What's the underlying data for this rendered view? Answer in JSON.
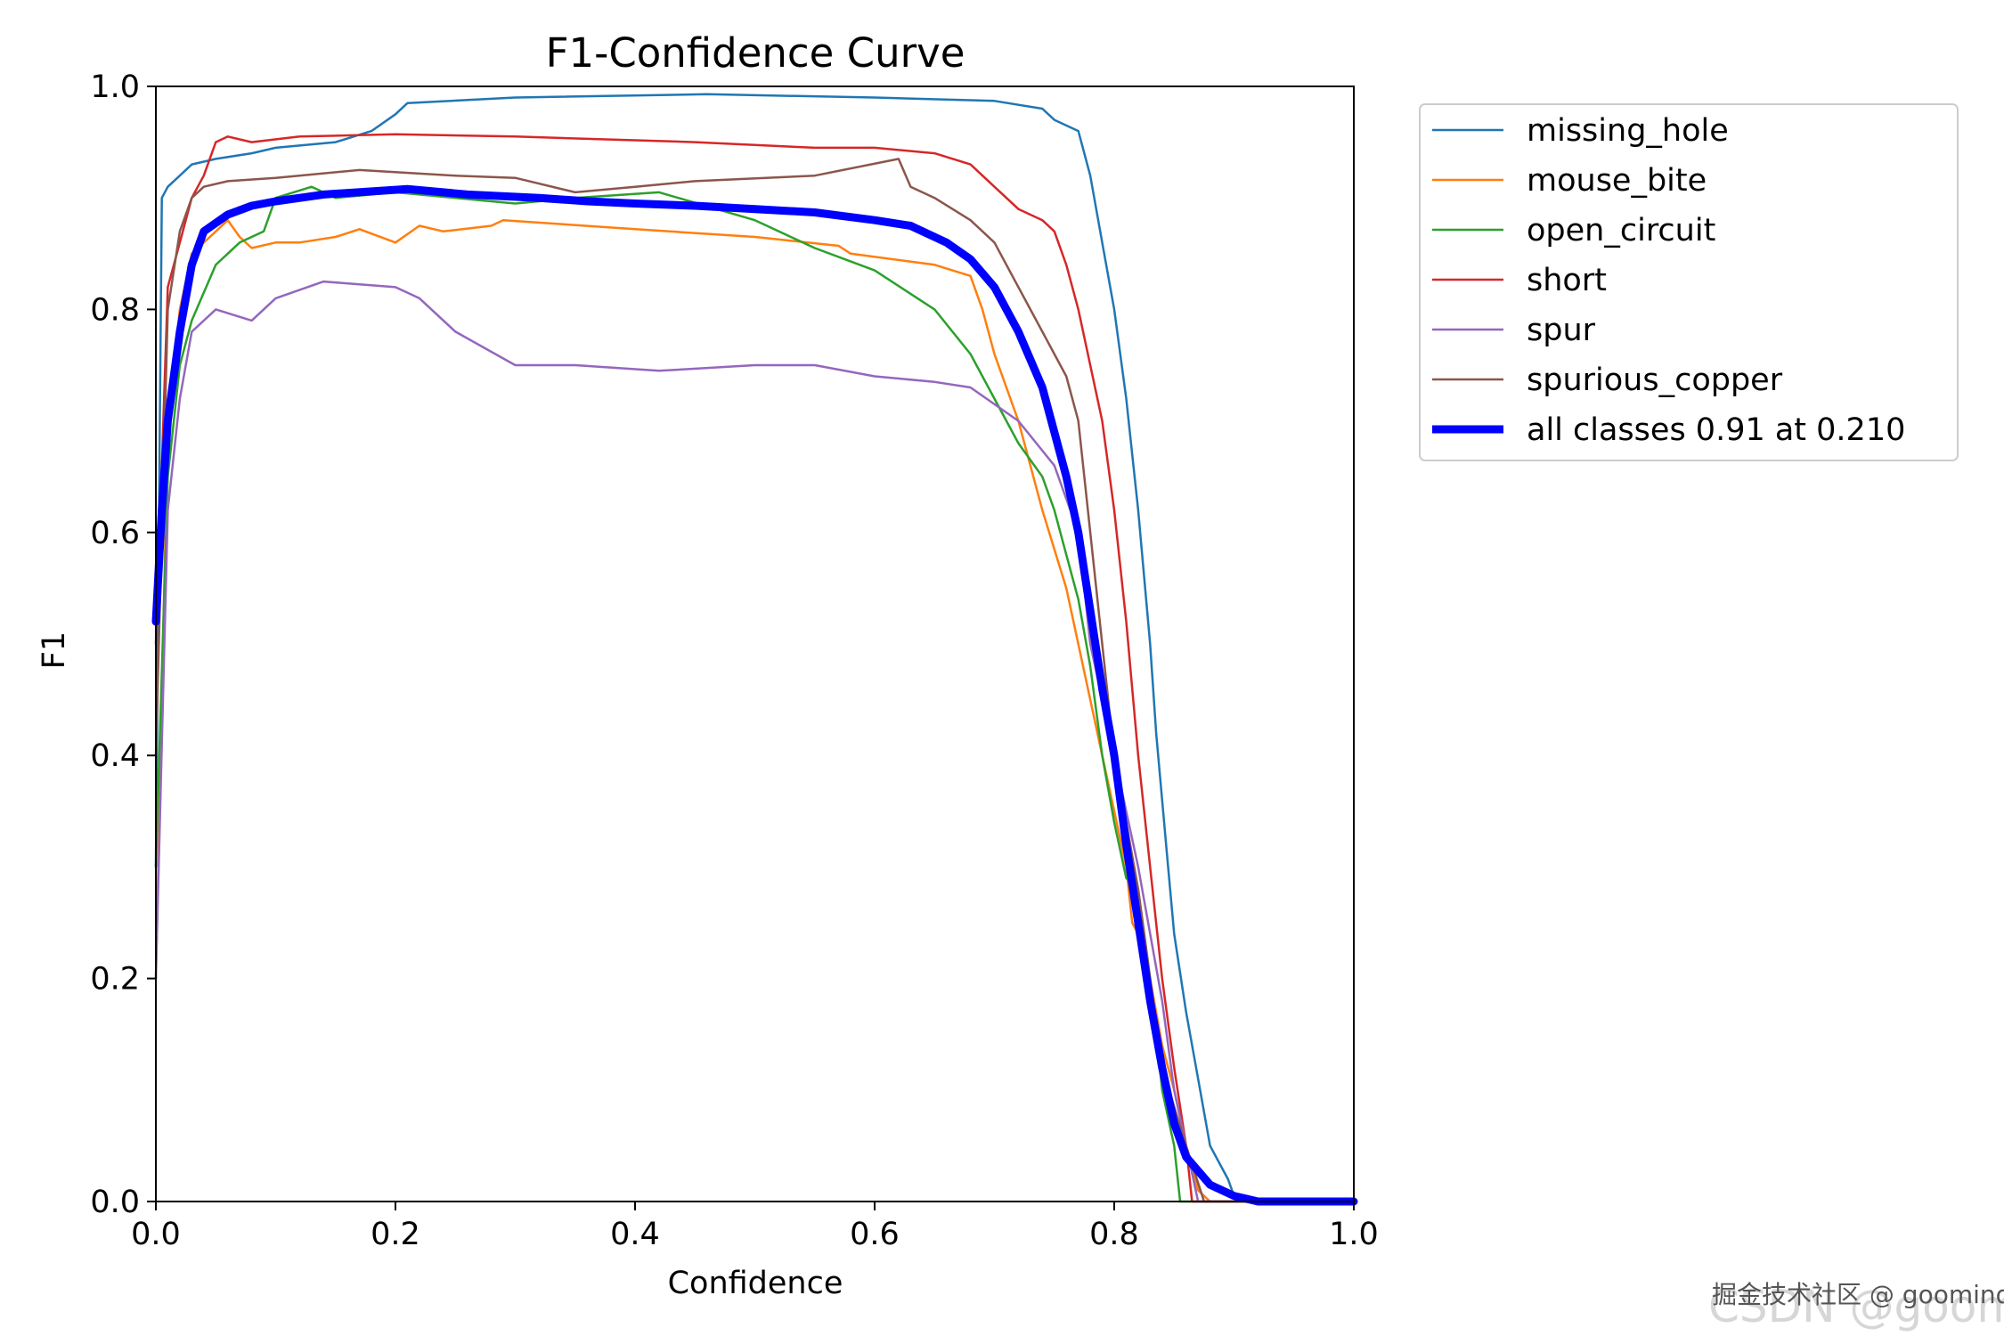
{
  "chart_data": {
    "type": "line",
    "title": "F1-Confidence Curve",
    "xlabel": "Confidence",
    "ylabel": "F1",
    "xlim": [
      0,
      1
    ],
    "ylim": [
      0,
      1
    ],
    "xticks": [
      "0.0",
      "0.2",
      "0.4",
      "0.6",
      "0.8",
      "1.0"
    ],
    "yticks": [
      "0.0",
      "0.2",
      "0.4",
      "0.6",
      "0.8",
      "1.0"
    ],
    "grid": false,
    "legend_position": "outside-upper-right",
    "series": [
      {
        "name": "missing_hole",
        "color": "#1f77b4",
        "width": 2.5,
        "points": [
          [
            0,
            0.3
          ],
          [
            0.005,
            0.9
          ],
          [
            0.01,
            0.91
          ],
          [
            0.02,
            0.92
          ],
          [
            0.03,
            0.93
          ],
          [
            0.05,
            0.935
          ],
          [
            0.08,
            0.94
          ],
          [
            0.1,
            0.945
          ],
          [
            0.15,
            0.95
          ],
          [
            0.18,
            0.96
          ],
          [
            0.2,
            0.975
          ],
          [
            0.21,
            0.985
          ],
          [
            0.3,
            0.99
          ],
          [
            0.46,
            0.993
          ],
          [
            0.6,
            0.99
          ],
          [
            0.7,
            0.987
          ],
          [
            0.74,
            0.98
          ],
          [
            0.75,
            0.97
          ],
          [
            0.77,
            0.96
          ],
          [
            0.78,
            0.92
          ],
          [
            0.79,
            0.86
          ],
          [
            0.8,
            0.8
          ],
          [
            0.81,
            0.72
          ],
          [
            0.82,
            0.62
          ],
          [
            0.825,
            0.56
          ],
          [
            0.83,
            0.5
          ],
          [
            0.835,
            0.42
          ],
          [
            0.84,
            0.36
          ],
          [
            0.845,
            0.3
          ],
          [
            0.85,
            0.24
          ],
          [
            0.86,
            0.17
          ],
          [
            0.87,
            0.11
          ],
          [
            0.88,
            0.05
          ],
          [
            0.89,
            0.03
          ],
          [
            0.895,
            0.02
          ],
          [
            0.9,
            0.005
          ],
          [
            0.91,
            0
          ],
          [
            1,
            0
          ]
        ]
      },
      {
        "name": "mouse_bite",
        "color": "#ff7f0e",
        "width": 2.5,
        "points": [
          [
            0,
            0.2
          ],
          [
            0.01,
            0.7
          ],
          [
            0.02,
            0.8
          ],
          [
            0.03,
            0.85
          ],
          [
            0.05,
            0.87
          ],
          [
            0.06,
            0.88
          ],
          [
            0.07,
            0.865
          ],
          [
            0.08,
            0.855
          ],
          [
            0.1,
            0.86
          ],
          [
            0.12,
            0.86
          ],
          [
            0.15,
            0.865
          ],
          [
            0.17,
            0.872
          ],
          [
            0.2,
            0.86
          ],
          [
            0.22,
            0.875
          ],
          [
            0.24,
            0.87
          ],
          [
            0.28,
            0.875
          ],
          [
            0.29,
            0.88
          ],
          [
            0.4,
            0.872
          ],
          [
            0.5,
            0.865
          ],
          [
            0.57,
            0.857
          ],
          [
            0.58,
            0.85
          ],
          [
            0.65,
            0.84
          ],
          [
            0.68,
            0.83
          ],
          [
            0.69,
            0.8
          ],
          [
            0.7,
            0.76
          ],
          [
            0.72,
            0.7
          ],
          [
            0.74,
            0.62
          ],
          [
            0.76,
            0.55
          ],
          [
            0.78,
            0.45
          ],
          [
            0.8,
            0.35
          ],
          [
            0.81,
            0.3
          ],
          [
            0.815,
            0.25
          ],
          [
            0.82,
            0.24
          ],
          [
            0.83,
            0.2
          ],
          [
            0.84,
            0.14
          ],
          [
            0.85,
            0.1
          ],
          [
            0.86,
            0.05
          ],
          [
            0.87,
            0.01
          ],
          [
            0.88,
            0
          ],
          [
            1,
            0
          ]
        ]
      },
      {
        "name": "open_circuit",
        "color": "#2ca02c",
        "width": 2.5,
        "points": [
          [
            0,
            0.3
          ],
          [
            0.01,
            0.65
          ],
          [
            0.02,
            0.75
          ],
          [
            0.03,
            0.79
          ],
          [
            0.05,
            0.84
          ],
          [
            0.07,
            0.86
          ],
          [
            0.09,
            0.87
          ],
          [
            0.1,
            0.9
          ],
          [
            0.13,
            0.91
          ],
          [
            0.15,
            0.9
          ],
          [
            0.2,
            0.905
          ],
          [
            0.25,
            0.9
          ],
          [
            0.3,
            0.895
          ],
          [
            0.35,
            0.9
          ],
          [
            0.42,
            0.905
          ],
          [
            0.5,
            0.88
          ],
          [
            0.55,
            0.855
          ],
          [
            0.6,
            0.835
          ],
          [
            0.65,
            0.8
          ],
          [
            0.68,
            0.76
          ],
          [
            0.7,
            0.72
          ],
          [
            0.72,
            0.68
          ],
          [
            0.74,
            0.65
          ],
          [
            0.75,
            0.62
          ],
          [
            0.76,
            0.58
          ],
          [
            0.77,
            0.54
          ],
          [
            0.78,
            0.48
          ],
          [
            0.79,
            0.4
          ],
          [
            0.8,
            0.34
          ],
          [
            0.81,
            0.29
          ],
          [
            0.82,
            0.28
          ],
          [
            0.83,
            0.2
          ],
          [
            0.84,
            0.1
          ],
          [
            0.85,
            0.05
          ],
          [
            0.855,
            0
          ],
          [
            1,
            0
          ]
        ]
      },
      {
        "name": "short",
        "color": "#d62728",
        "width": 2.5,
        "points": [
          [
            0,
            0.5
          ],
          [
            0.01,
            0.82
          ],
          [
            0.02,
            0.86
          ],
          [
            0.03,
            0.9
          ],
          [
            0.04,
            0.92
          ],
          [
            0.05,
            0.95
          ],
          [
            0.06,
            0.955
          ],
          [
            0.08,
            0.95
          ],
          [
            0.12,
            0.955
          ],
          [
            0.2,
            0.957
          ],
          [
            0.3,
            0.955
          ],
          [
            0.45,
            0.95
          ],
          [
            0.55,
            0.945
          ],
          [
            0.6,
            0.945
          ],
          [
            0.65,
            0.94
          ],
          [
            0.68,
            0.93
          ],
          [
            0.7,
            0.91
          ],
          [
            0.72,
            0.89
          ],
          [
            0.74,
            0.88
          ],
          [
            0.75,
            0.87
          ],
          [
            0.76,
            0.84
          ],
          [
            0.77,
            0.8
          ],
          [
            0.78,
            0.75
          ],
          [
            0.79,
            0.7
          ],
          [
            0.8,
            0.62
          ],
          [
            0.81,
            0.52
          ],
          [
            0.82,
            0.4
          ],
          [
            0.83,
            0.3
          ],
          [
            0.84,
            0.2
          ],
          [
            0.85,
            0.12
          ],
          [
            0.86,
            0.05
          ],
          [
            0.865,
            0
          ],
          [
            1,
            0
          ]
        ]
      },
      {
        "name": "spur",
        "color": "#9467bd",
        "width": 2.5,
        "points": [
          [
            0,
            0.2
          ],
          [
            0.01,
            0.62
          ],
          [
            0.02,
            0.72
          ],
          [
            0.03,
            0.78
          ],
          [
            0.05,
            0.8
          ],
          [
            0.08,
            0.79
          ],
          [
            0.1,
            0.81
          ],
          [
            0.14,
            0.825
          ],
          [
            0.2,
            0.82
          ],
          [
            0.22,
            0.81
          ],
          [
            0.25,
            0.78
          ],
          [
            0.3,
            0.75
          ],
          [
            0.35,
            0.75
          ],
          [
            0.42,
            0.745
          ],
          [
            0.5,
            0.75
          ],
          [
            0.55,
            0.75
          ],
          [
            0.6,
            0.74
          ],
          [
            0.65,
            0.735
          ],
          [
            0.68,
            0.73
          ],
          [
            0.72,
            0.7
          ],
          [
            0.75,
            0.66
          ],
          [
            0.77,
            0.6
          ],
          [
            0.78,
            0.5
          ],
          [
            0.8,
            0.4
          ],
          [
            0.82,
            0.3
          ],
          [
            0.84,
            0.18
          ],
          [
            0.85,
            0.1
          ],
          [
            0.86,
            0.05
          ],
          [
            0.87,
            0
          ],
          [
            1,
            0
          ]
        ]
      },
      {
        "name": "spurious_copper",
        "color": "#8c564b",
        "width": 2.5,
        "points": [
          [
            0,
            0.4
          ],
          [
            0.01,
            0.8
          ],
          [
            0.02,
            0.87
          ],
          [
            0.03,
            0.9
          ],
          [
            0.04,
            0.91
          ],
          [
            0.06,
            0.915
          ],
          [
            0.1,
            0.918
          ],
          [
            0.17,
            0.925
          ],
          [
            0.25,
            0.92
          ],
          [
            0.3,
            0.918
          ],
          [
            0.35,
            0.905
          ],
          [
            0.4,
            0.91
          ],
          [
            0.45,
            0.915
          ],
          [
            0.55,
            0.92
          ],
          [
            0.62,
            0.935
          ],
          [
            0.63,
            0.91
          ],
          [
            0.65,
            0.9
          ],
          [
            0.68,
            0.88
          ],
          [
            0.7,
            0.86
          ],
          [
            0.72,
            0.82
          ],
          [
            0.74,
            0.78
          ],
          [
            0.76,
            0.74
          ],
          [
            0.77,
            0.7
          ],
          [
            0.78,
            0.6
          ],
          [
            0.79,
            0.5
          ],
          [
            0.8,
            0.4
          ],
          [
            0.82,
            0.28
          ],
          [
            0.83,
            0.2
          ],
          [
            0.84,
            0.12
          ],
          [
            0.86,
            0.05
          ],
          [
            0.875,
            0
          ],
          [
            1,
            0
          ]
        ]
      },
      {
        "name": "all classes 0.91 at 0.210",
        "color": "#0000ff",
        "width": 9,
        "points": [
          [
            0,
            0.52
          ],
          [
            0.005,
            0.62
          ],
          [
            0.01,
            0.7
          ],
          [
            0.02,
            0.78
          ],
          [
            0.03,
            0.84
          ],
          [
            0.04,
            0.87
          ],
          [
            0.06,
            0.885
          ],
          [
            0.08,
            0.893
          ],
          [
            0.1,
            0.897
          ],
          [
            0.14,
            0.903
          ],
          [
            0.21,
            0.908
          ],
          [
            0.26,
            0.903
          ],
          [
            0.32,
            0.9
          ],
          [
            0.36,
            0.897
          ],
          [
            0.4,
            0.895
          ],
          [
            0.45,
            0.893
          ],
          [
            0.5,
            0.89
          ],
          [
            0.55,
            0.887
          ],
          [
            0.6,
            0.88
          ],
          [
            0.63,
            0.875
          ],
          [
            0.66,
            0.86
          ],
          [
            0.68,
            0.845
          ],
          [
            0.7,
            0.82
          ],
          [
            0.72,
            0.78
          ],
          [
            0.74,
            0.73
          ],
          [
            0.76,
            0.65
          ],
          [
            0.77,
            0.6
          ],
          [
            0.78,
            0.53
          ],
          [
            0.79,
            0.46
          ],
          [
            0.8,
            0.4
          ],
          [
            0.81,
            0.32
          ],
          [
            0.82,
            0.25
          ],
          [
            0.83,
            0.18
          ],
          [
            0.84,
            0.12
          ],
          [
            0.85,
            0.07
          ],
          [
            0.86,
            0.04
          ],
          [
            0.88,
            0.015
          ],
          [
            0.9,
            0.005
          ],
          [
            0.92,
            0
          ],
          [
            1,
            0
          ]
        ]
      }
    ]
  },
  "watermark": {
    "line1": "掘金技术社区 @ goomind",
    "line2": "CSDN @goomind"
  }
}
